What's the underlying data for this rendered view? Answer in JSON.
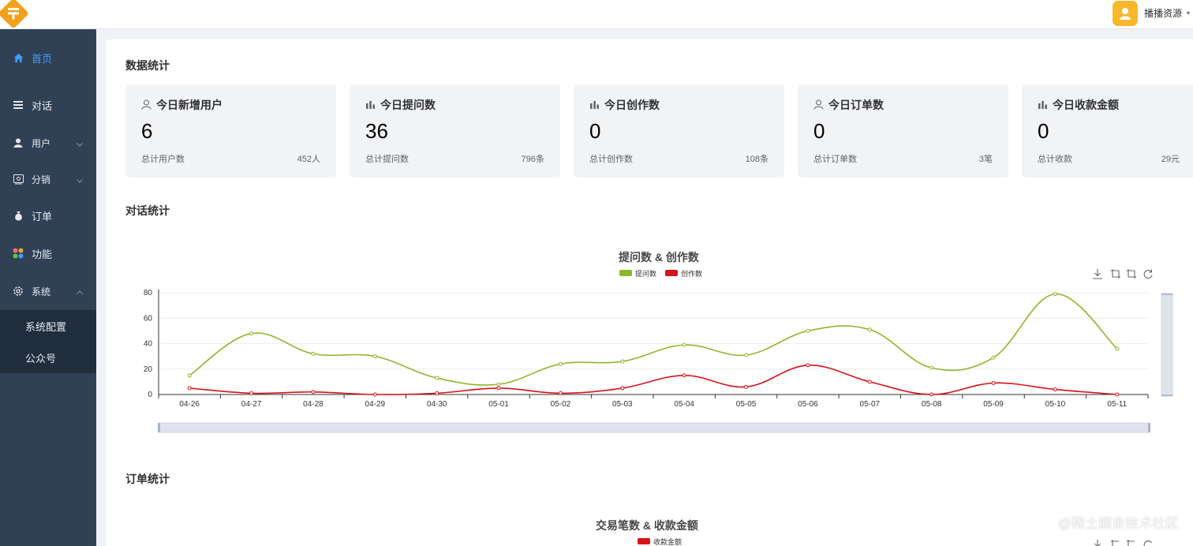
{
  "header": {
    "username": "播播资源"
  },
  "sidebar": {
    "items": [
      {
        "label": "首页",
        "icon": "home-icon",
        "active": true
      },
      {
        "label": "对话",
        "icon": "menu-list-icon"
      },
      {
        "label": "用户",
        "icon": "user-icon",
        "expandable": true
      },
      {
        "label": "分销",
        "icon": "distribution-icon",
        "expandable": true
      },
      {
        "label": "订单",
        "icon": "money-bag-icon"
      },
      {
        "label": "功能",
        "icon": "apps-grid-icon"
      },
      {
        "label": "系统",
        "icon": "gear-icon",
        "expandable": true,
        "expanded": true
      }
    ],
    "sub_items": [
      {
        "label": "系统配置"
      },
      {
        "label": "公众号"
      }
    ]
  },
  "sections": {
    "data_stats": "数据统计",
    "dialog_stats": "对话统计",
    "order_stats": "订单统计"
  },
  "cards": [
    {
      "title": "今日新增用户",
      "icon": "user-outline-icon",
      "value": "6",
      "foot_label": "总计用户数",
      "foot_value": "452人"
    },
    {
      "title": "今日提问数",
      "icon": "bar-chart-icon",
      "value": "36",
      "foot_label": "总计提问数",
      "foot_value": "796条"
    },
    {
      "title": "今日创作数",
      "icon": "bar-chart-icon",
      "value": "0",
      "foot_label": "总计创作数",
      "foot_value": "108条"
    },
    {
      "title": "今日订单数",
      "icon": "user-outline-icon",
      "value": "0",
      "foot_label": "总计订单数",
      "foot_value": "3笔"
    },
    {
      "title": "今日收款金额",
      "icon": "bar-chart-icon",
      "value": "0",
      "foot_label": "总计收款",
      "foot_value": "29元"
    }
  ],
  "toolbox_icons": [
    "download-icon",
    "crop-icon",
    "crop-reset-icon",
    "refresh-icon"
  ],
  "chart_data": [
    {
      "type": "line",
      "title": "提问数 & 创作数",
      "categories": [
        "04-26",
        "04-27",
        "04-28",
        "04-29",
        "04-30",
        "05-01",
        "05-02",
        "05-03",
        "05-04",
        "05-05",
        "05-06",
        "05-07",
        "05-08",
        "05-09",
        "05-10",
        "05-11"
      ],
      "series": [
        {
          "name": "提问数",
          "color": "#8fb62b",
          "values": [
            15,
            48,
            32,
            30,
            13,
            8,
            24,
            26,
            39,
            31,
            50,
            51,
            21,
            29,
            79,
            36
          ]
        },
        {
          "name": "创作数",
          "color": "#d7121c",
          "values": [
            5,
            1,
            2,
            0,
            1,
            5,
            1,
            5,
            15,
            6,
            23,
            10,
            0,
            9,
            4,
            0
          ]
        }
      ],
      "yticks": [
        0,
        20,
        40,
        60,
        80
      ],
      "ylim": [
        0,
        80
      ],
      "smooth": true,
      "grid": true,
      "legend": "top-center"
    },
    {
      "type": "line",
      "title": "交易笔数 & 收款金额",
      "series": [
        {
          "name": "收款金额",
          "color": "#d7121c"
        }
      ],
      "legend": "top-center"
    }
  ],
  "watermark": "@稀土掘金技术社区"
}
